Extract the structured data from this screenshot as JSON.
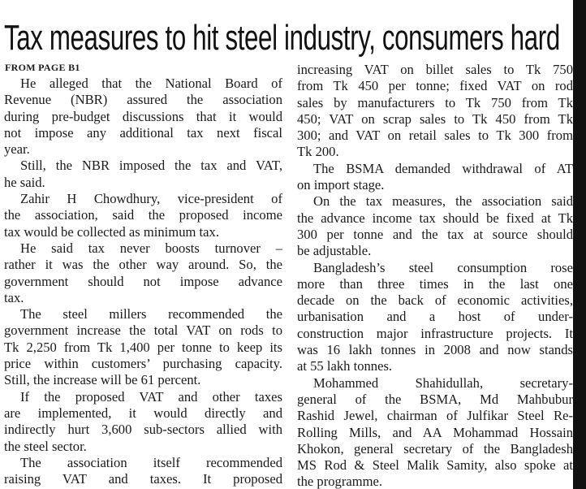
{
  "header": {
    "title": "Tax measures to hit steel industry, consumers hard",
    "kicker": "FROM PAGE B1"
  },
  "columns": [
    {
      "paragraphs": [
        {
          "lines": [
            "He alleged that the National Board of",
            "Revenue (NBR) assured the association",
            "during pre-budget discussions that it would",
            "not impose any additional tax next fiscal",
            "year."
          ]
        },
        {
          "lines": [
            "Still, the NBR imposed the tax and VAT,",
            "he said."
          ]
        },
        {
          "lines": [
            "Zahir H Chowdhury, vice-president of",
            "the association, said the proposed income",
            "tax would be collected as minimum tax."
          ]
        },
        {
          "lines": [
            "He said tax never boosts turnover –",
            "rather it was the other way around. So, the",
            "government should not impose advance",
            "tax."
          ]
        },
        {
          "lines": [
            "The steel millers recommended the",
            "government increase the total VAT on rods to",
            "Tk 2,250 from Tk 1,400 per tonne to keep its",
            "price within customers’ purchasing capacity.",
            "Still, the increase will be 61 percent."
          ]
        },
        {
          "lines": [
            "If the proposed VAT and other taxes",
            "are implemented, it would directly and",
            "indirectly hurt 3,600 sub-sectors allied with",
            "the steel sector."
          ]
        },
        {
          "lines": [
            "The association itself recommended",
            "raising VAT and taxes. It proposed"
          ]
        }
      ]
    },
    {
      "paragraphs": [
        {
          "lines": [
            "increasing VAT on billet sales to Tk 750",
            "from Tk 450 per tonne; fixed VAT on rod",
            "sales by manufacturers to Tk 750 from Tk",
            "450; VAT on scrap sales to Tk 450 from Tk",
            "300; and VAT on retail sales to Tk 300 from",
            "Tk 200."
          ]
        },
        {
          "lines": [
            "The BSMA demanded withdrawal of AT",
            "on import stage."
          ]
        },
        {
          "lines": [
            "On the tax measures, the association said",
            "the advance income tax should be fixed at Tk",
            "300 per tonne and the tax at source should",
            "be adjustable."
          ]
        },
        {
          "lines": [
            "Bangladesh’s steel consumption rose",
            "more than three times in the last one",
            "decade on the back of economic activities,",
            "urbanisation and a host of under-",
            "construction major infrastructure projects. It",
            "was 16 lakh tonnes in 2008 and now stands",
            "at 55 lakh tonnes."
          ]
        },
        {
          "lines": [
            "Mohammed Shahidullah, secretary-",
            "general of the BSMA, Md Mahbubur",
            "Rashid Jewel, chairman of Julfikar Steel Re-",
            "Rolling Mills, and AA Mohammad Hossain",
            "Khokon, general secretary of the Bangladesh",
            "MS Rod & Steel Malik Samity, also spoke at",
            "the programme."
          ]
        }
      ]
    }
  ]
}
